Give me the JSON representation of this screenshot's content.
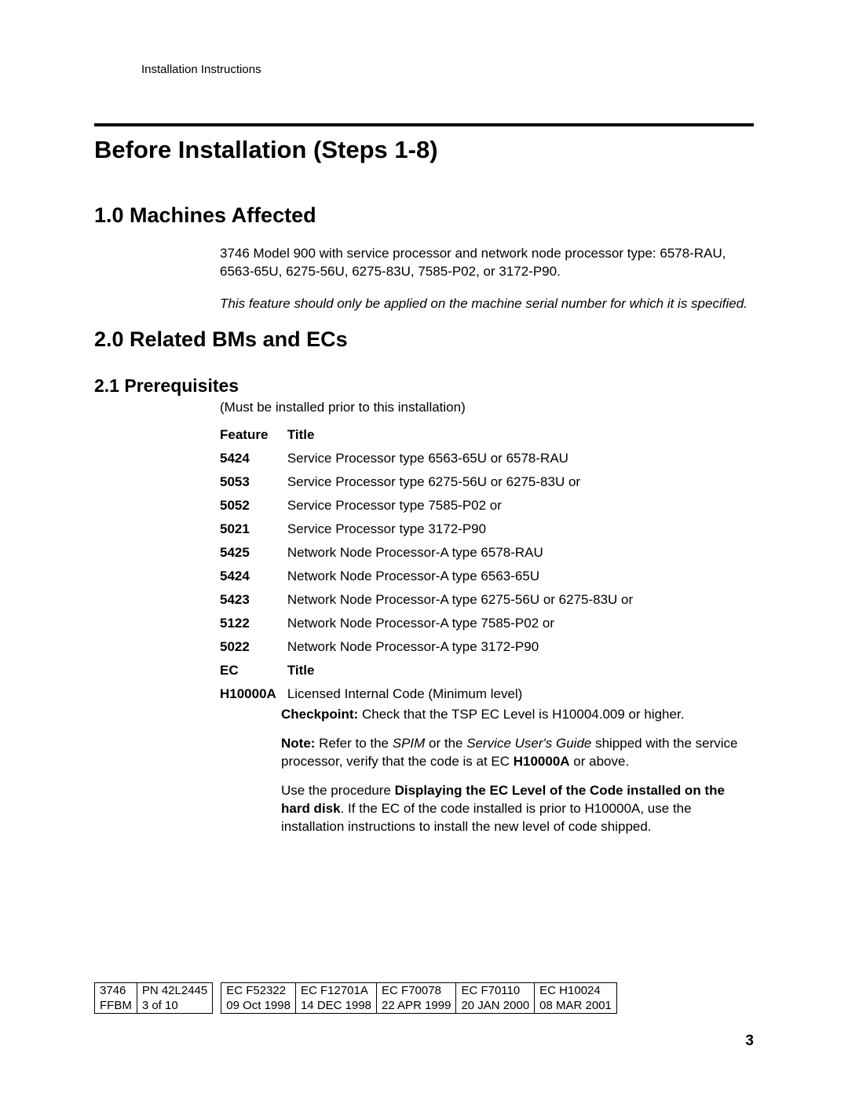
{
  "runningHead": "Installation Instructions",
  "mainTitle": "Before Installation (Steps 1-8)",
  "section1": {
    "heading": "1.0  Machines Affected",
    "p1": "3746 Model 900 with service processor and network node processor type: 6578-RAU, 6563-65U, 6275-56U, 6275-83U, 7585-P02, or 3172-P90.",
    "p2": "This feature should only be applied on the machine serial number for which it is specified."
  },
  "section2": {
    "heading": "2.0  Related BMs and ECs",
    "sub1": "2.1  Prerequisites",
    "preNote": "(Must be installed prior to this installation)",
    "header1a": "Feature",
    "header1b": "Title",
    "rows1": [
      {
        "f": "5424",
        "t": "Service Processor type 6563-65U or 6578-RAU"
      },
      {
        "f": "5053",
        "t": "Service Processor type 6275-56U or 6275-83U or"
      },
      {
        "f": "5052",
        "t": "Service Processor type 7585-P02 or"
      },
      {
        "f": "5021",
        "t": "Service Processor type 3172-P90"
      },
      {
        "f": "5425",
        "t": "Network Node Processor-A type 6578-RAU"
      },
      {
        "f": "5424",
        "t": "Network Node Processor-A type 6563-65U"
      },
      {
        "f": "5423",
        "t": "Network Node Processor-A type 6275-56U or 6275-83U or"
      },
      {
        "f": "5122",
        "t": "Network Node Processor-A type 7585-P02 or"
      },
      {
        "f": "5022",
        "t": "Network Node Processor-A type 3172-P90"
      }
    ],
    "header2a": "EC",
    "header2b": "Title",
    "row2": {
      "f": "H10000A",
      "t": "Licensed Internal Code (Minimum level)"
    },
    "checkpointLabel": "Checkpoint:",
    "checkpointText": "  Check that the TSP EC Level is H10004.009 or higher.",
    "noteLabel": "Note:",
    "noteA": "  Refer to the ",
    "noteI1": "SPIM",
    "noteB": " or the ",
    "noteI2": "Service User's Guide",
    "noteC": " shipped with the service processor, verify that the code is at EC ",
    "noteBold": "H10000A",
    "noteD": " or above.",
    "proc1": "Use the procedure ",
    "procBold": "Displaying the EC Level of the Code installed on the hard disk",
    "proc2": ".  If the EC of the code installed is prior to H10000A, use the installation instructions to install the new level of code shipped."
  },
  "footer": {
    "left": {
      "r1c1": "3746",
      "r1c2": "PN 42L2445",
      "r2c1": "FFBM",
      "r2c2": "3 of 10"
    },
    "right": {
      "r1": [
        "EC  F52322",
        "EC  F12701A",
        "EC  F70078",
        "EC  F70110",
        "EC  H10024"
      ],
      "r2": [
        "09 Oct 1998",
        "14 DEC 1998",
        "22 APR 1999",
        "20 JAN 2000",
        "08 MAR 2001"
      ]
    },
    "pageNum": "3"
  }
}
